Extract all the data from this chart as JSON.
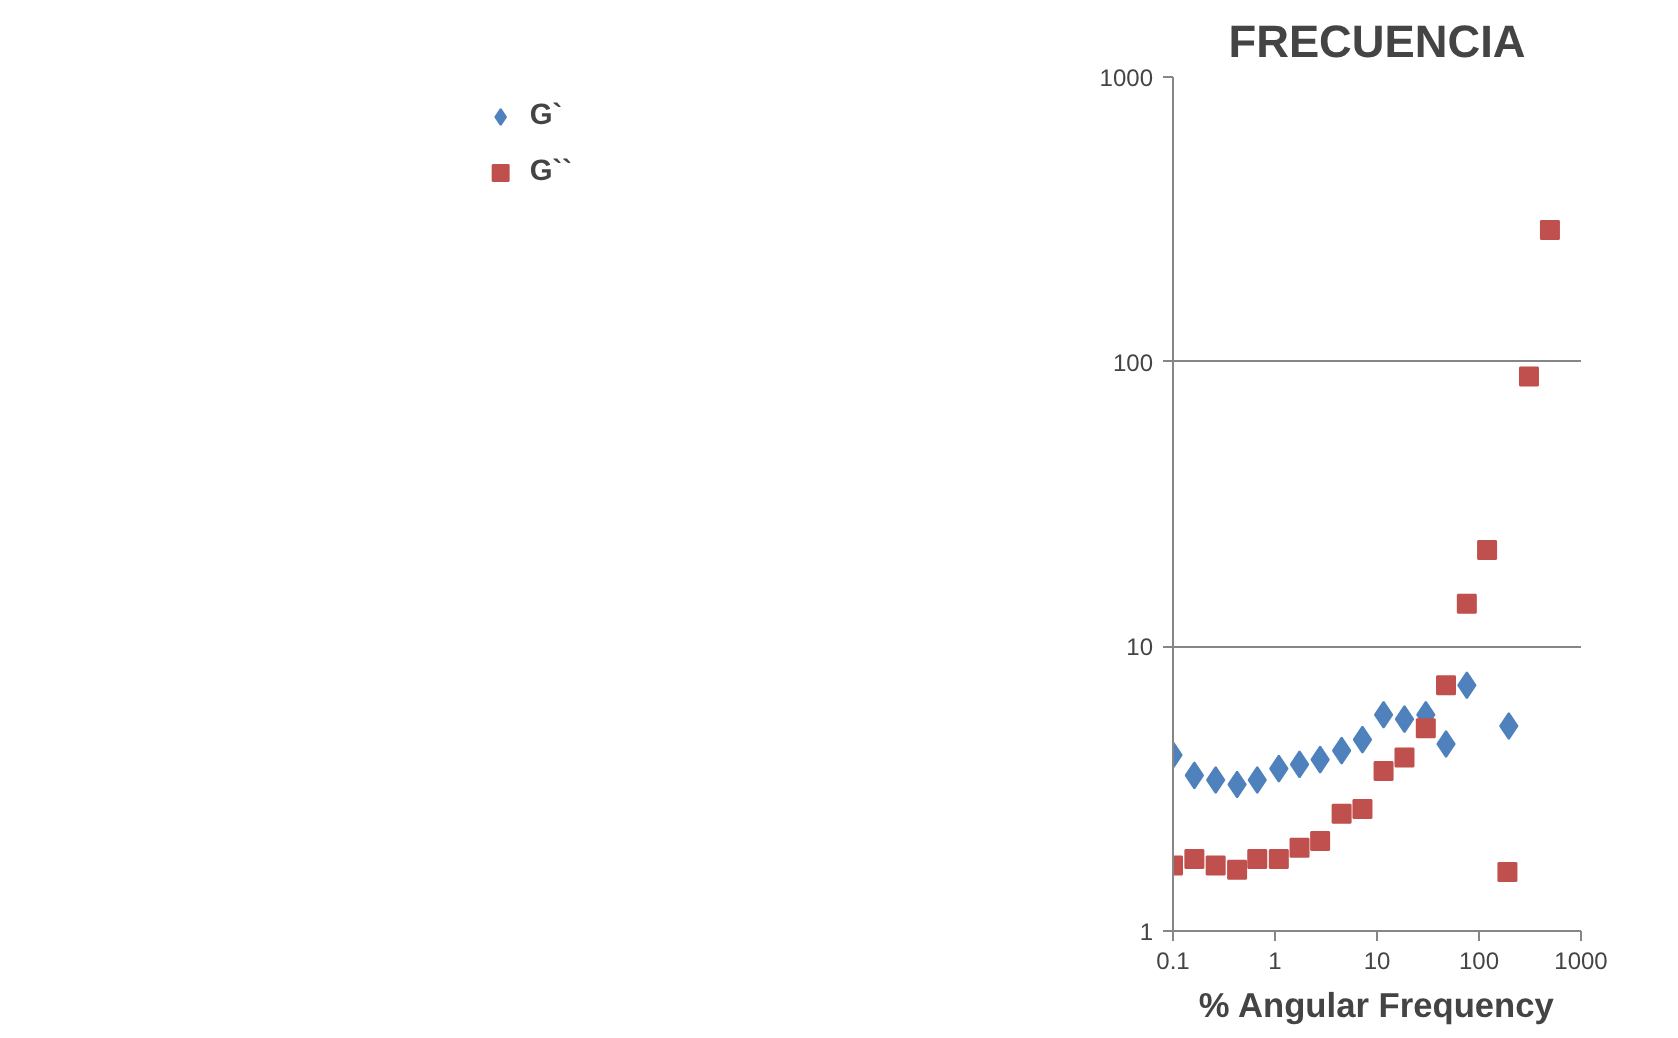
{
  "chart_data": {
    "type": "scatter",
    "title": "FRECUENCIA",
    "xlabel": "% Angular Frequency",
    "log": "xy",
    "xlim": [
      0.1,
      1000
    ],
    "ylim": [
      1,
      1000
    ],
    "xticks": [
      0.1,
      1,
      10,
      100,
      1000
    ],
    "yticks": [
      1,
      10,
      100,
      1000
    ],
    "grid": "y",
    "legend": "left",
    "series": [
      {
        "name": "G`",
        "color": "#4f81bd",
        "marker": "diamond",
        "x": [
          0.1,
          0.162,
          0.262,
          0.425,
          0.67,
          1.09,
          1.74,
          2.77,
          4.5,
          7.2,
          11.6,
          18.6,
          30.1,
          47.5,
          76,
          196
        ],
        "values": [
          4.15,
          3.52,
          3.39,
          3.27,
          3.39,
          3.72,
          3.85,
          4.0,
          4.3,
          4.7,
          5.75,
          5.55,
          5.75,
          4.54,
          7.3,
          5.25
        ]
      },
      {
        "name": "G``",
        "color": "#c0504d",
        "marker": "square",
        "x": [
          0.1,
          0.162,
          0.262,
          0.425,
          0.67,
          1.09,
          1.74,
          2.77,
          4.5,
          7.2,
          11.6,
          18.6,
          30.1,
          47.5,
          76,
          120,
          190,
          309,
          496
        ],
        "values": [
          1.7,
          1.79,
          1.7,
          1.64,
          1.79,
          1.79,
          1.96,
          2.07,
          2.58,
          2.68,
          3.65,
          4.07,
          5.16,
          7.3,
          14.1,
          21.8,
          1.61,
          88.7,
          290
        ]
      }
    ]
  }
}
